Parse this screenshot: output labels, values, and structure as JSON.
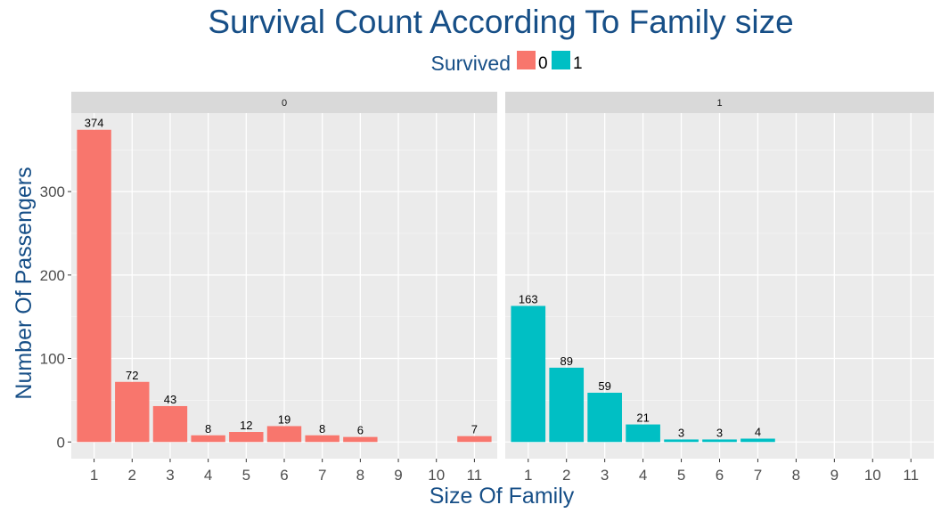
{
  "chart_data": {
    "type": "bar",
    "title": "Survival Count According To Family size",
    "xlabel": "Size Of Family",
    "ylabel": "Number Of Passengers",
    "legend": {
      "title": "Survived",
      "position": "top",
      "entries": [
        {
          "label": "0",
          "color": "#F8766D"
        },
        {
          "label": "1",
          "color": "#00BFC4"
        }
      ]
    },
    "categories": [
      "1",
      "2",
      "3",
      "4",
      "5",
      "6",
      "7",
      "8",
      "9",
      "10",
      "11"
    ],
    "y_ticks": [
      "0",
      "100",
      "200",
      "300"
    ],
    "ylim": [
      -20,
      394
    ],
    "grid": true,
    "facets": [
      {
        "strip": "0",
        "color": "#F8766D",
        "bars": [
          {
            "x": "1",
            "value": 374
          },
          {
            "x": "2",
            "value": 72
          },
          {
            "x": "3",
            "value": 43
          },
          {
            "x": "4",
            "value": 8
          },
          {
            "x": "5",
            "value": 12
          },
          {
            "x": "6",
            "value": 19
          },
          {
            "x": "7",
            "value": 8
          },
          {
            "x": "8",
            "value": 6
          },
          {
            "x": "11",
            "value": 7
          }
        ]
      },
      {
        "strip": "1",
        "color": "#00BFC4",
        "bars": [
          {
            "x": "1",
            "value": 163
          },
          {
            "x": "2",
            "value": 89
          },
          {
            "x": "3",
            "value": 59
          },
          {
            "x": "4",
            "value": 21
          },
          {
            "x": "5",
            "value": 3
          },
          {
            "x": "6",
            "value": 3
          },
          {
            "x": "7",
            "value": 4
          }
        ]
      }
    ]
  }
}
